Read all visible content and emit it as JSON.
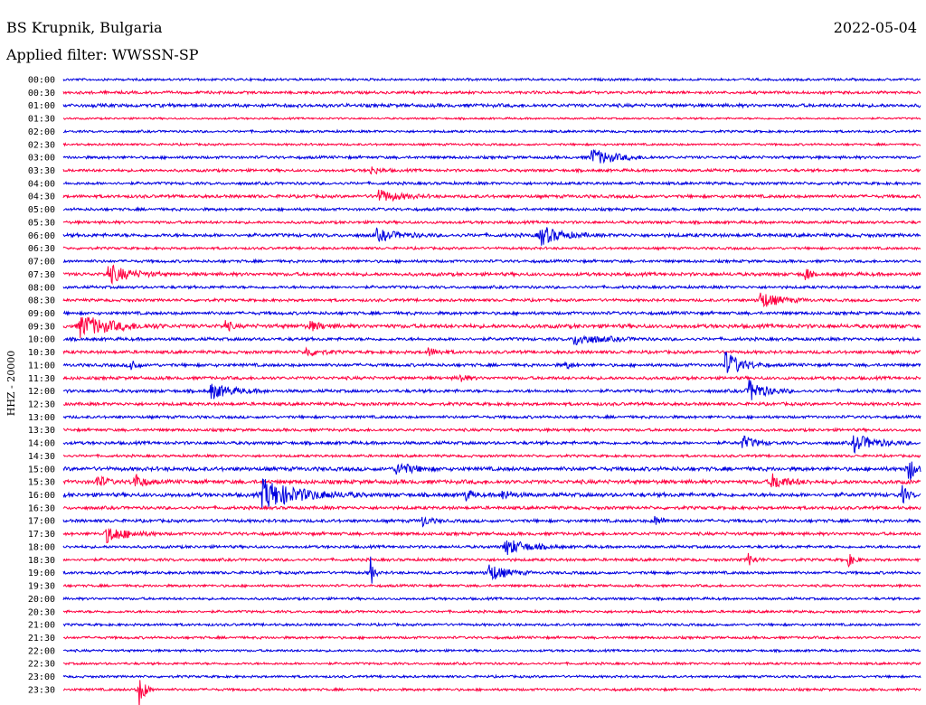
{
  "header": {
    "station": "BS Krupnik, Bulgaria",
    "date": "2022-05-04",
    "filter": "Applied filter: WWSSN-SP"
  },
  "colors": {
    "blue": "#0000e0",
    "red": "#ff0040",
    "background": "#ffffff"
  },
  "chart_data": {
    "type": "helicorder",
    "channel_label": "HHZ - 20000",
    "x_span_minutes": 30,
    "row_labels": [
      "00:00",
      "00:30",
      "01:00",
      "01:30",
      "02:00",
      "02:30",
      "03:00",
      "03:30",
      "04:00",
      "04:30",
      "05:00",
      "05:30",
      "06:00",
      "06:30",
      "07:00",
      "07:30",
      "08:00",
      "08:30",
      "09:00",
      "09:30",
      "10:00",
      "10:30",
      "11:00",
      "11:30",
      "12:00",
      "12:30",
      "13:00",
      "13:30",
      "14:00",
      "14:30",
      "15:00",
      "15:30",
      "16:00",
      "16:30",
      "17:00",
      "17:30",
      "18:00",
      "18:30",
      "19:00",
      "19:30",
      "20:00",
      "20:30",
      "21:00",
      "21:30",
      "22:00",
      "22:30",
      "23:00",
      "23:30"
    ],
    "row_color_pattern": [
      "blue",
      "red"
    ],
    "noise_amplitude": [
      1.5,
      1.8,
      2.2,
      1.2,
      1.5,
      1.4,
      1.8,
      1.8,
      1.8,
      2.0,
      1.8,
      1.8,
      2.2,
      1.6,
      1.8,
      2.2,
      1.8,
      1.8,
      2.0,
      2.5,
      2.0,
      2.0,
      2.0,
      2.0,
      2.0,
      2.0,
      1.8,
      1.8,
      2.0,
      1.6,
      2.5,
      2.5,
      2.5,
      2.0,
      2.0,
      2.0,
      1.8,
      1.8,
      1.8,
      1.6,
      1.6,
      1.6,
      1.6,
      1.6,
      1.5,
      1.5,
      1.5,
      1.6
    ],
    "events": [
      {
        "row": "03:00",
        "minute": 18.5,
        "amplitude": 9,
        "duration_min": 2.2
      },
      {
        "row": "03:30",
        "minute": 10.8,
        "amplitude": 4,
        "duration_min": 0.8
      },
      {
        "row": "04:30",
        "minute": 11.0,
        "amplitude": 7,
        "duration_min": 2.0
      },
      {
        "row": "06:00",
        "minute": 16.7,
        "amplitude": 11,
        "duration_min": 1.8
      },
      {
        "row": "06:00",
        "minute": 11.0,
        "amplitude": 6,
        "duration_min": 2.0
      },
      {
        "row": "07:30",
        "minute": 1.6,
        "amplitude": 10,
        "duration_min": 2.0
      },
      {
        "row": "07:30",
        "minute": 26.0,
        "amplitude": 9,
        "duration_min": 0.3
      },
      {
        "row": "08:30",
        "minute": 24.4,
        "amplitude": 9,
        "duration_min": 1.8
      },
      {
        "row": "09:30",
        "minute": 0.6,
        "amplitude": 12,
        "duration_min": 3.0
      },
      {
        "row": "09:30",
        "minute": 5.7,
        "amplitude": 6,
        "duration_min": 0.5
      },
      {
        "row": "09:30",
        "minute": 8.6,
        "amplitude": 5,
        "duration_min": 1.2
      },
      {
        "row": "10:00",
        "minute": 17.9,
        "amplitude": 6,
        "duration_min": 2.5
      },
      {
        "row": "10:30",
        "minute": 8.5,
        "amplitude": 5,
        "duration_min": 1.2
      },
      {
        "row": "10:30",
        "minute": 12.8,
        "amplitude": 4,
        "duration_min": 1.0
      },
      {
        "row": "11:00",
        "minute": 2.4,
        "amplitude": 9,
        "duration_min": 0.4
      },
      {
        "row": "11:00",
        "minute": 23.2,
        "amplitude": 14,
        "duration_min": 1.5
      },
      {
        "row": "11:00",
        "minute": 17.6,
        "amplitude": 4,
        "duration_min": 0.6
      },
      {
        "row": "11:30",
        "minute": 13.9,
        "amplitude": 5,
        "duration_min": 0.6
      },
      {
        "row": "12:00",
        "minute": 5.2,
        "amplitude": 8,
        "duration_min": 2.0
      },
      {
        "row": "12:00",
        "minute": 24.0,
        "amplitude": 12,
        "duration_min": 1.5
      },
      {
        "row": "14:00",
        "minute": 23.8,
        "amplitude": 7,
        "duration_min": 1.2
      },
      {
        "row": "14:00",
        "minute": 27.7,
        "amplitude": 9,
        "duration_min": 2.0
      },
      {
        "row": "15:00",
        "minute": 11.7,
        "amplitude": 7,
        "duration_min": 1.5
      },
      {
        "row": "15:00",
        "minute": 29.6,
        "amplitude": 14,
        "duration_min": 0.6
      },
      {
        "row": "15:30",
        "minute": 1.2,
        "amplitude": 7,
        "duration_min": 0.8
      },
      {
        "row": "15:30",
        "minute": 2.5,
        "amplitude": 9,
        "duration_min": 0.8
      },
      {
        "row": "15:30",
        "minute": 24.8,
        "amplitude": 8,
        "duration_min": 1.5
      },
      {
        "row": "16:00",
        "minute": 7.0,
        "amplitude": 16,
        "duration_min": 3.5
      },
      {
        "row": "16:00",
        "minute": 14.1,
        "amplitude": 6,
        "duration_min": 0.6
      },
      {
        "row": "16:00",
        "minute": 15.4,
        "amplitude": 5,
        "duration_min": 0.8
      },
      {
        "row": "16:00",
        "minute": 29.4,
        "amplitude": 8,
        "duration_min": 0.5
      },
      {
        "row": "17:00",
        "minute": 12.6,
        "amplitude": 5,
        "duration_min": 0.8
      },
      {
        "row": "17:00",
        "minute": 20.7,
        "amplitude": 5,
        "duration_min": 0.8
      },
      {
        "row": "17:30",
        "minute": 1.5,
        "amplitude": 9,
        "duration_min": 2.0
      },
      {
        "row": "18:00",
        "minute": 15.5,
        "amplitude": 9,
        "duration_min": 2.0
      },
      {
        "row": "18:30",
        "minute": 24.0,
        "amplitude": 6,
        "duration_min": 0.6
      },
      {
        "row": "18:30",
        "minute": 27.5,
        "amplitude": 6,
        "duration_min": 0.6
      },
      {
        "row": "19:00",
        "minute": 10.8,
        "amplitude": 11,
        "duration_min": 0.3
      },
      {
        "row": "19:00",
        "minute": 14.9,
        "amplitude": 10,
        "duration_min": 1.5
      },
      {
        "row": "23:30",
        "minute": 2.7,
        "amplitude": 16,
        "duration_min": 0.5
      }
    ]
  }
}
